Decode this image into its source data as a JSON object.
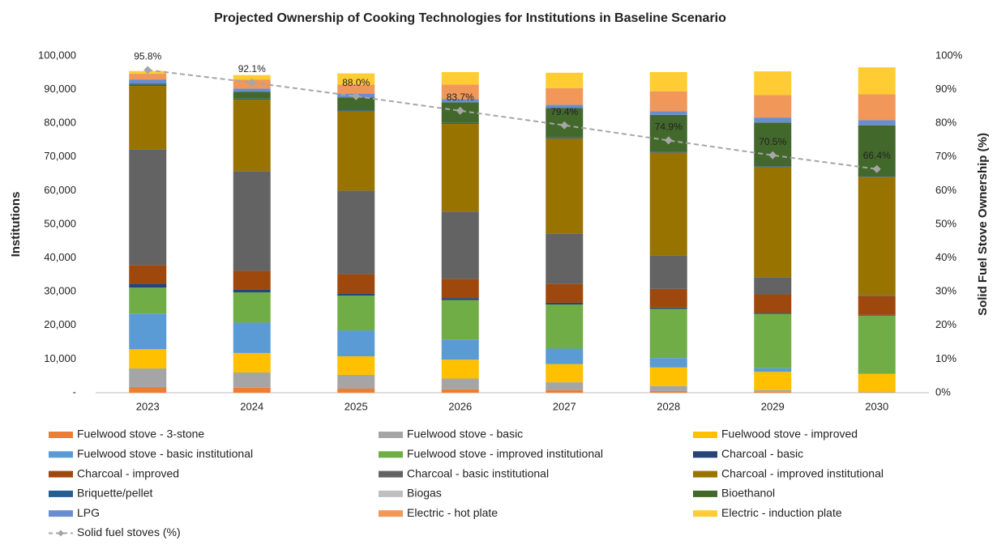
{
  "chart_data": {
    "type": "bar",
    "stacked": true,
    "title": "Projected Ownership of Cooking Technologies for Institutions in Baseline Scenario",
    "y_label": "Institutions",
    "y2_label": "Solid Fuel Stove Ownership (%)",
    "categories": [
      "2023",
      "2024",
      "2025",
      "2026",
      "2027",
      "2028",
      "2029",
      "2030"
    ],
    "ylim": [
      0,
      100000
    ],
    "yticks": [
      {
        "value": 0,
        "label": "-"
      },
      {
        "value": 10000,
        "label": "10,000"
      },
      {
        "value": 20000,
        "label": "20,000"
      },
      {
        "value": 30000,
        "label": "30,000"
      },
      {
        "value": 40000,
        "label": "40,000"
      },
      {
        "value": 50000,
        "label": "50,000"
      },
      {
        "value": 60000,
        "label": "60,000"
      },
      {
        "value": 70000,
        "label": "70,000"
      },
      {
        "value": 80000,
        "label": "80,000"
      },
      {
        "value": 90000,
        "label": "90,000"
      },
      {
        "value": 100000,
        "label": "100,000"
      }
    ],
    "y2lim": [
      0,
      100
    ],
    "y2ticks": [
      {
        "value": 0,
        "label": "0%"
      },
      {
        "value": 10,
        "label": "10%"
      },
      {
        "value": 20,
        "label": "20%"
      },
      {
        "value": 30,
        "label": "30%"
      },
      {
        "value": 40,
        "label": "40%"
      },
      {
        "value": 50,
        "label": "50%"
      },
      {
        "value": 60,
        "label": "60%"
      },
      {
        "value": 70,
        "label": "70%"
      },
      {
        "value": 80,
        "label": "80%"
      },
      {
        "value": 90,
        "label": "90%"
      },
      {
        "value": 100,
        "label": "100%"
      }
    ],
    "grid": false,
    "legend": "bottom",
    "series": [
      {
        "name": "Fuelwood stove - 3-stone",
        "color": "#ed7d31",
        "values": [
          1700,
          1500,
          1200,
          1000,
          800,
          500,
          300,
          100
        ]
      },
      {
        "name": "Fuelwood stove - basic",
        "color": "#a5a5a5",
        "values": [
          5500,
          4500,
          4100,
          3200,
          2300,
          1500,
          500,
          100
        ]
      },
      {
        "name": "Fuelwood stove - improved",
        "color": "#ffc000",
        "values": [
          5700,
          5800,
          5500,
          5600,
          5400,
          5500,
          5400,
          5400
        ]
      },
      {
        "name": "Fuelwood stove - basic institutional",
        "color": "#5b9bd5",
        "values": [
          10600,
          9000,
          7700,
          6000,
          4600,
          2800,
          1100,
          0
        ]
      },
      {
        "name": "Fuelwood stove - improved institutional",
        "color": "#70ad47",
        "values": [
          7700,
          9000,
          10300,
          11700,
          13100,
          14600,
          16100,
          17300
        ]
      },
      {
        "name": "Charcoal - basic",
        "color": "#264478",
        "values": [
          1200,
          900,
          700,
          600,
          500,
          400,
          300,
          200
        ]
      },
      {
        "name": "Charcoal - improved",
        "color": "#9e480e",
        "values": [
          5500,
          5500,
          5700,
          5700,
          5600,
          5500,
          5500,
          5600
        ]
      },
      {
        "name": "Charcoal - basic institutional",
        "color": "#636363",
        "values": [
          34400,
          29600,
          24800,
          20000,
          15000,
          10000,
          5100,
          300
        ]
      },
      {
        "name": "Charcoal - improved institutional",
        "color": "#997300",
        "values": [
          18800,
          21200,
          23500,
          26000,
          28200,
          30500,
          32800,
          35100
        ]
      },
      {
        "name": "Briquette/pellet",
        "color": "#255e91",
        "values": [
          400,
          300,
          300,
          300,
          300,
          300,
          200,
          200
        ]
      },
      {
        "name": "Biogas",
        "color": "#bfbfbf",
        "values": [
          0,
          0,
          0,
          0,
          0,
          0,
          0,
          0
        ]
      },
      {
        "name": "Bioethanol",
        "color": "#43682b",
        "values": [
          300,
          2000,
          3900,
          6100,
          8700,
          10900,
          12900,
          15100
        ]
      },
      {
        "name": "LPG",
        "color": "#698ed0",
        "values": [
          1200,
          1000,
          1100,
          1000,
          1000,
          1100,
          1500,
          1500
        ]
      },
      {
        "name": "Electric - hot plate",
        "color": "#f1975a",
        "values": [
          1700,
          2700,
          2700,
          4300,
          4900,
          5900,
          6700,
          7700
        ]
      },
      {
        "name": "Electric - induction plate",
        "color": "#ffcd33",
        "values": [
          800,
          1300,
          3300,
          3700,
          4600,
          5700,
          7000,
          8000
        ]
      },
      {
        "name": "Solid fuel stoves (%)",
        "color": "#a6a6a6",
        "axis": "y2",
        "line_style": "dashed",
        "marker": "diamond",
        "values": [
          95.8,
          92.1,
          88.0,
          83.7,
          79.4,
          74.9,
          70.5,
          66.4
        ],
        "value_labels": [
          "95.8%",
          "92.1%",
          "88.0%",
          "83.7%",
          "79.4%",
          "74.9%",
          "70.5%",
          "66.4%"
        ]
      }
    ]
  }
}
